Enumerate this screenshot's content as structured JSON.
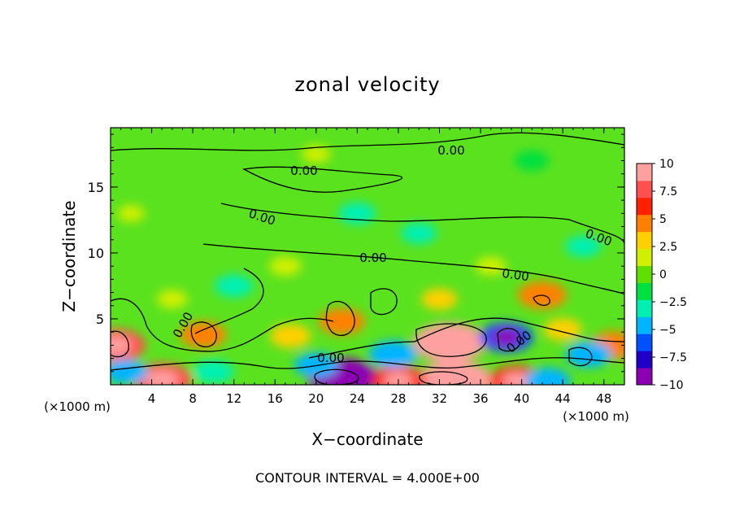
{
  "chart_data": {
    "type": "heatmap",
    "title": "zonal velocity",
    "xlabel": "X−coordinate",
    "ylabel": "Z−coordinate",
    "x_unit_label": "(×1000 m)",
    "x_unit_label_right": "(×1000 m)",
    "footer": "CONTOUR INTERVAL = 4.000E+00",
    "xlim": [
      0,
      50
    ],
    "ylim": [
      0,
      19.5
    ],
    "x_ticks": [
      4,
      8,
      12,
      16,
      20,
      24,
      28,
      32,
      36,
      40,
      44,
      48
    ],
    "x_tick_labels": [
      "4",
      "8",
      "12",
      "16",
      "20",
      "24",
      "28",
      "32",
      "36",
      "40",
      "44",
      "48"
    ],
    "y_ticks": [
      5,
      10,
      15
    ],
    "y_tick_labels": [
      "5",
      "10",
      "15"
    ],
    "colorbar": {
      "range": [
        -10,
        10
      ],
      "ticks": [
        10,
        7.5,
        5,
        2.5,
        0,
        -2.5,
        -5,
        -7.5,
        -10
      ],
      "tick_labels": [
        "10",
        "7.5",
        "5",
        "2.5",
        "0",
        "−2.5",
        "−5",
        "−7.5",
        "−10"
      ],
      "colors": [
        "#8c00b4",
        "#2000c8",
        "#0050ff",
        "#00b4ff",
        "#00f0b4",
        "#00e040",
        "#60e000",
        "#d0f000",
        "#ffd000",
        "#ff8000",
        "#ff2000",
        "#ff5050",
        "#ffa0a0"
      ]
    },
    "contour_level_label": "0.00",
    "features": [
      {
        "x": 33,
        "z": 3.2,
        "value": 9.5
      },
      {
        "x": 22.5,
        "z": 0.6,
        "value": -9
      },
      {
        "x": 33.5,
        "z": 0.3,
        "value": 10
      },
      {
        "x": 0.5,
        "z": 3.0,
        "value": 7
      },
      {
        "x": 5,
        "z": 0.4,
        "value": 7
      },
      {
        "x": 9,
        "z": 3.8,
        "value": 4.5
      },
      {
        "x": 17.5,
        "z": 3.7,
        "value": 3.5
      },
      {
        "x": 22.5,
        "z": 4.8,
        "value": 4.5
      },
      {
        "x": 28,
        "z": 0.3,
        "value": 6
      },
      {
        "x": 39.5,
        "z": 0.3,
        "value": 6
      },
      {
        "x": 42,
        "z": 6.8,
        "value": 5
      },
      {
        "x": 49,
        "z": 3.0,
        "value": 5
      },
      {
        "x": 38.5,
        "z": 3.6,
        "value": -6
      },
      {
        "x": 27.5,
        "z": 2.3,
        "value": -5
      },
      {
        "x": 42.5,
        "z": 0.3,
        "value": -4.5
      },
      {
        "x": 46.5,
        "z": 2.3,
        "value": -4.5
      },
      {
        "x": 1.5,
        "z": 1.0,
        "value": -4
      },
      {
        "x": 10,
        "z": 1.0,
        "value": -3.5
      },
      {
        "x": 20,
        "z": 1.5,
        "value": -4
      },
      {
        "x": 12,
        "z": 7.5,
        "value": -3
      },
      {
        "x": 24,
        "z": 13,
        "value": -2.8
      },
      {
        "x": 30,
        "z": 11.5,
        "value": -2.5
      },
      {
        "x": 46,
        "z": 10.5,
        "value": -2.5
      },
      {
        "x": 41,
        "z": 17,
        "value": -2.2
      },
      {
        "x": 6,
        "z": 6.5,
        "value": 1.5
      },
      {
        "x": 17,
        "z": 9,
        "value": 1.8
      },
      {
        "x": 32,
        "z": 6.5,
        "value": 2.5
      },
      {
        "x": 37,
        "z": 9,
        "value": 1.5
      },
      {
        "x": 20,
        "z": 17.5,
        "value": 1.2
      },
      {
        "x": 2,
        "z": 13,
        "value": 0.8
      },
      {
        "x": 44,
        "z": 4.2,
        "value": 3
      }
    ]
  }
}
